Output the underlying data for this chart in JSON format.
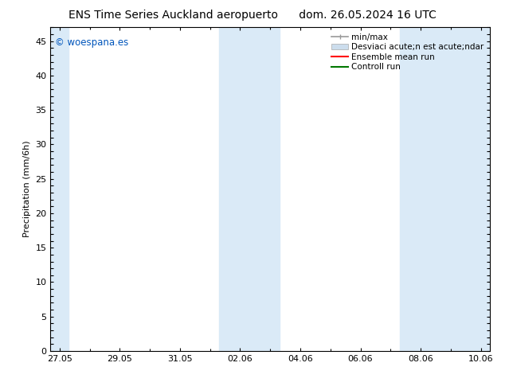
{
  "title_left": "ENS Time Series Auckland aeropuerto",
  "title_right": "dom. 26.05.2024 16 UTC",
  "ylabel": "Precipitation (mm/6h)",
  "ylim": [
    0,
    47
  ],
  "yticks": [
    0,
    5,
    10,
    15,
    20,
    25,
    30,
    35,
    40,
    45
  ],
  "xtick_labels": [
    "27.05",
    "29.05",
    "31.05",
    "02.06",
    "04.06",
    "06.06",
    "08.06",
    "10.06"
  ],
  "xtick_positions": [
    0,
    2,
    4,
    6,
    8,
    10,
    12,
    14
  ],
  "xlim": [
    -0.3,
    14.3
  ],
  "background_color": "#ffffff",
  "plot_bg_color": "#ffffff",
  "band_color": "#daeaf7",
  "shaded_bands": [
    {
      "xstart": -0.3,
      "xend": 0.3
    },
    {
      "xstart": 5.3,
      "xend": 7.3
    },
    {
      "xstart": 11.3,
      "xend": 14.3
    }
  ],
  "watermark_text": "© woespana.es",
  "watermark_color": "#0055bb",
  "legend_labels": [
    "min/max",
    "Desviaci acute;n est acute;ndar",
    "Ensemble mean run",
    "Controll run"
  ],
  "legend_colors": [
    "#aaaaaa",
    "#ccdded",
    "#ff0000",
    "#007700"
  ],
  "title_fontsize": 10,
  "tick_fontsize": 8,
  "ylabel_fontsize": 8,
  "legend_fontsize": 7.5
}
